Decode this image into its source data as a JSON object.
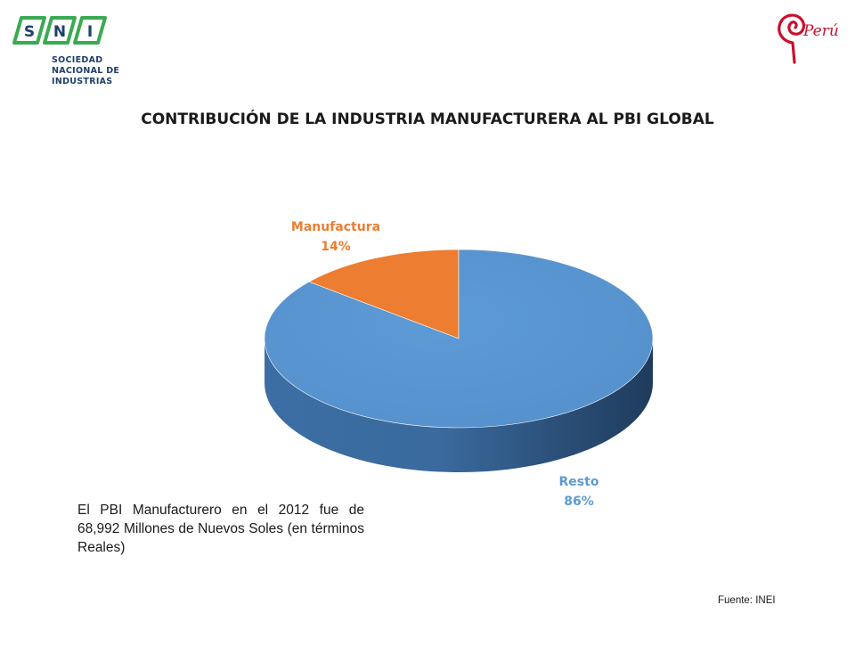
{
  "logo": {
    "sni_letters": [
      "S",
      "N",
      "I"
    ],
    "sni_lines": [
      "SOCIEDAD",
      "NACIONAL DE",
      "INDUSTRIAS"
    ],
    "peru_wordmark": "Perú"
  },
  "chart_data": {
    "type": "pie",
    "title": "CONTRIBUCIÓN DE LA INDUSTRIA MANUFACTURERA AL PBI GLOBAL",
    "categories": [
      "Manufactura",
      "Resto"
    ],
    "values": [
      14,
      86
    ],
    "data_labels": [
      "14%",
      "86%"
    ],
    "colors": [
      "#ed7d31",
      "#5b9bd5"
    ],
    "style": "3d"
  },
  "note": "El PBI Manufacturero en el 2012 fue de 68,992 Millones de Nuevos Soles (en términos Reales)",
  "source": "Fuente: INEI",
  "colors": {
    "sni_green": "#3aaa52",
    "sni_navy": "#1f3f6b",
    "peru_red": "#c8102e"
  }
}
